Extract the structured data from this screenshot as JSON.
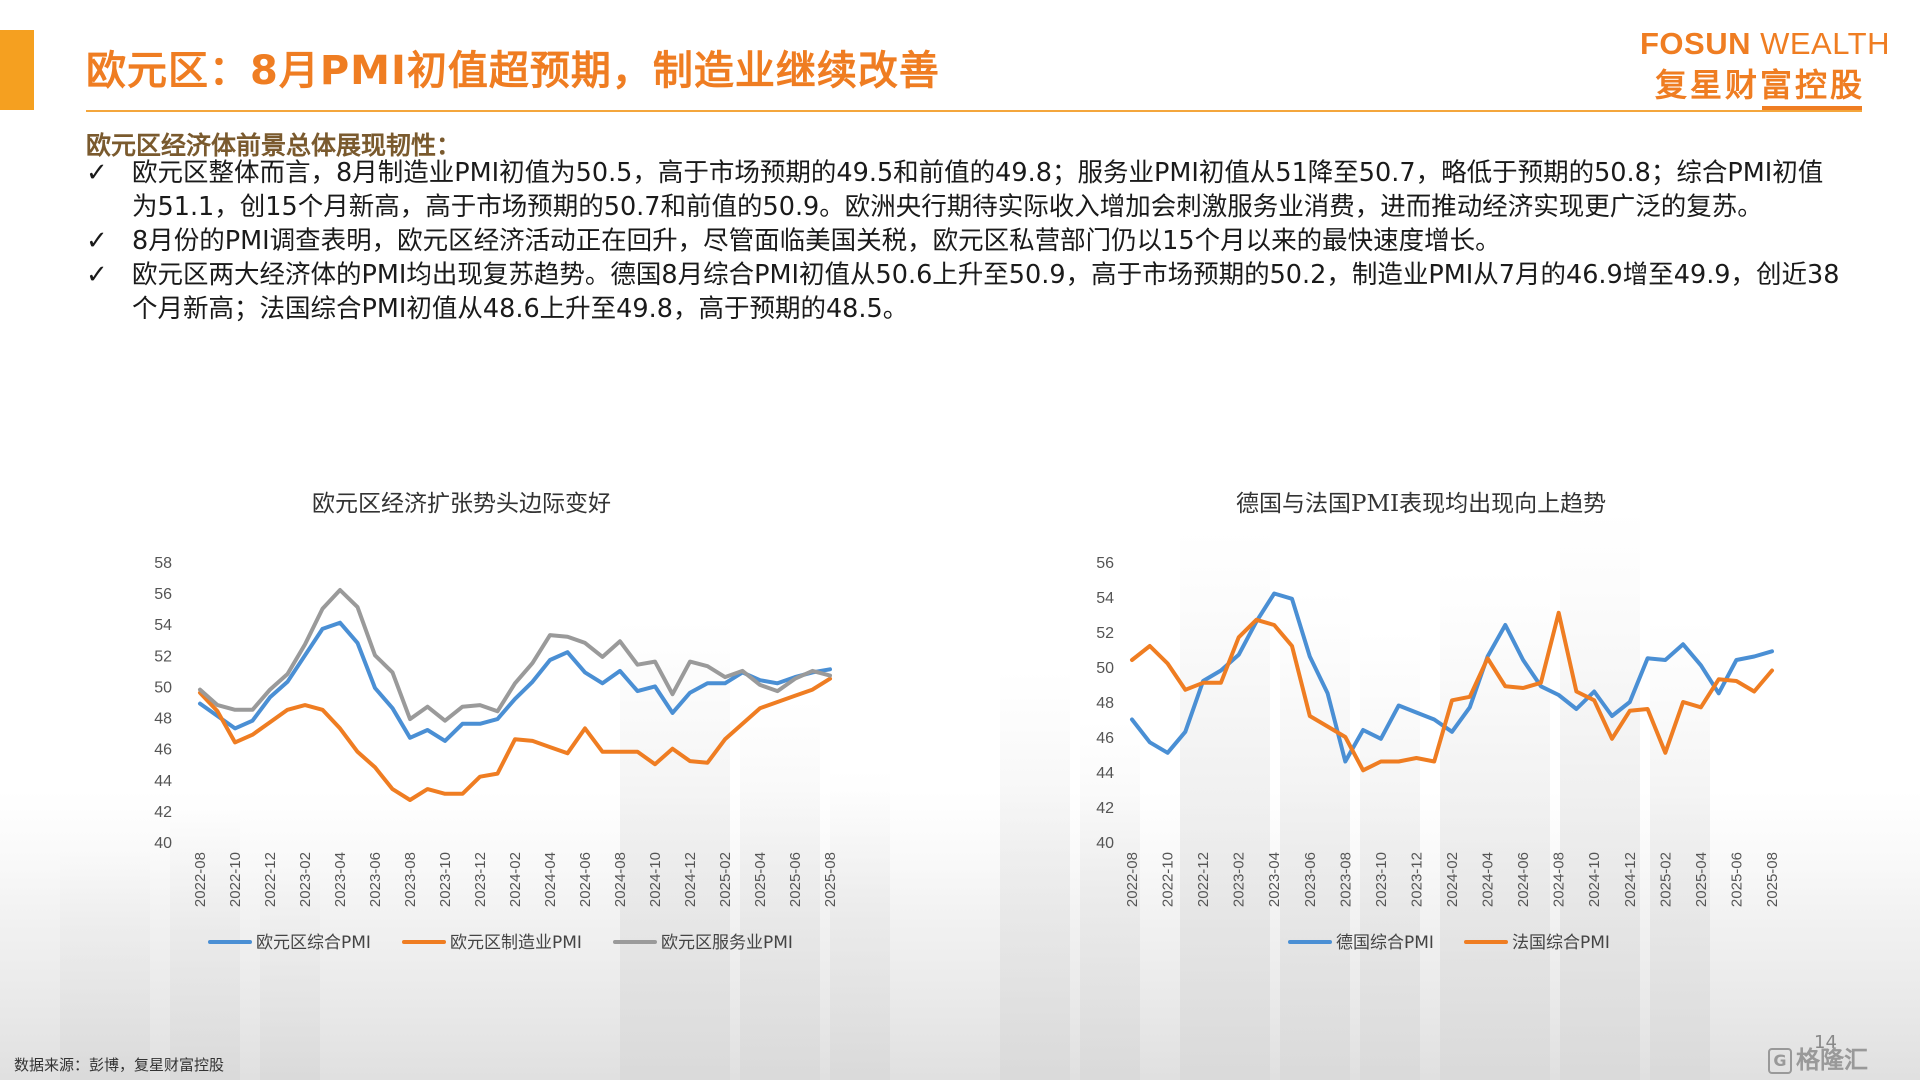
{
  "header": {
    "title": "欧元区：8月PMI初值超预期，制造业继续改善",
    "brand_en_bold": "FOSUN",
    "brand_en_light": " WEALTH",
    "brand_cn": "复星财富控股"
  },
  "intro": "欧元区经济体前景总体展现韧性：",
  "bullets": [
    "欧元区整体而言，8月制造业PMI初值为50.5，高于市场预期的49.5和前值的49.8；服务业PMI初值从51降至50.7，略低于预期的50.8；综合PMI初值为51.1，创15个月新高，高于市场预期的50.7和前值的50.9。欧洲央行期待实际收入增加会刺激服务业消费，进而推动经济实现更广泛的复苏。",
    "8月份的PMI调查表明，欧元区经济活动正在回升，尽管面临美国关税，欧元区私营部门仍以15个月以来的最快速度增长。",
    "欧元区两大经济体的PMI均出现复苏趋势。德国8月综合PMI初值从50.6上升至50.9，高于市场预期的50.2，制造业PMI从7月的46.9增至49.9，创近38个月新高；法国综合PMI初值从48.6上升至49.8，高于预期的48.5。"
  ],
  "check_glyph": "✓",
  "footer": {
    "source": "数据来源：彭博，复星财富控股",
    "page": "14",
    "watermark": "格隆汇",
    "watermark_icon": "G"
  },
  "chart_data": [
    {
      "type": "line",
      "title": "欧元区经济扩张势头边际变好",
      "ylim": [
        40,
        58
      ],
      "yticks": [
        40,
        42,
        44,
        46,
        48,
        50,
        52,
        54,
        56,
        58
      ],
      "xtick_labels": [
        "2022-08",
        "2022-10",
        "2022-12",
        "2023-02",
        "2023-04",
        "2023-06",
        "2023-08",
        "2023-10",
        "2023-12",
        "2024-02",
        "2024-04",
        "2024-06",
        "2024-08",
        "2024-10",
        "2024-12",
        "2025-02",
        "2025-04",
        "2025-06",
        "2025-08"
      ],
      "grid": false,
      "legend_position": "bottom",
      "series": [
        {
          "name": "欧元区综合PMI",
          "color": "#4a8fd4",
          "values": [
            48.9,
            48.1,
            47.3,
            47.8,
            49.3,
            50.3,
            52.0,
            53.7,
            54.1,
            52.8,
            49.9,
            48.6,
            46.7,
            47.2,
            46.5,
            47.6,
            47.6,
            47.9,
            49.2,
            50.3,
            51.7,
            52.2,
            50.9,
            50.2,
            51.0,
            49.7,
            50.0,
            48.3,
            49.6,
            50.2,
            50.2,
            50.9,
            50.4,
            50.2,
            50.6,
            50.9,
            51.1
          ]
        },
        {
          "name": "欧元区制造业PMI",
          "color": "#ef7d22",
          "values": [
            49.6,
            48.4,
            46.4,
            46.9,
            47.7,
            48.5,
            48.8,
            48.5,
            47.3,
            45.8,
            44.8,
            43.4,
            42.7,
            43.4,
            43.1,
            43.1,
            44.2,
            44.4,
            46.6,
            46.5,
            46.1,
            45.7,
            47.3,
            45.8,
            45.8,
            45.8,
            45.0,
            46.0,
            45.2,
            45.1,
            46.6,
            47.6,
            48.6,
            49.0,
            49.4,
            49.8,
            50.5
          ]
        },
        {
          "name": "欧元区服务业PMI",
          "color": "#9a9a9a",
          "values": [
            49.8,
            48.8,
            48.5,
            48.5,
            49.8,
            50.8,
            52.7,
            55.0,
            56.2,
            55.1,
            52.0,
            50.9,
            47.9,
            48.7,
            47.8,
            48.7,
            48.8,
            48.4,
            50.2,
            51.5,
            53.3,
            53.2,
            52.8,
            51.9,
            52.9,
            51.4,
            51.6,
            49.5,
            51.6,
            51.3,
            50.6,
            51.0,
            50.1,
            49.7,
            50.5,
            51.0,
            50.7
          ]
        }
      ]
    },
    {
      "type": "line",
      "title": "德国与法国PMI表现均出现向上趋势",
      "ylim": [
        40,
        56
      ],
      "yticks": [
        40,
        42,
        44,
        46,
        48,
        50,
        52,
        54,
        56
      ],
      "xtick_labels": [
        "2022-08",
        "2022-10",
        "2022-12",
        "2023-02",
        "2023-04",
        "2023-06",
        "2023-08",
        "2023-10",
        "2023-12",
        "2024-02",
        "2024-04",
        "2024-06",
        "2024-08",
        "2024-10",
        "2024-12",
        "2025-02",
        "2025-04",
        "2025-06",
        "2025-08"
      ],
      "grid": false,
      "legend_position": "bottom",
      "series": [
        {
          "name": "德国综合PMI",
          "color": "#4a8fd4",
          "values": [
            47.0,
            45.7,
            45.1,
            46.3,
            49.2,
            49.8,
            50.7,
            52.6,
            54.2,
            53.9,
            50.6,
            48.5,
            44.6,
            46.4,
            45.9,
            47.8,
            47.4,
            47.0,
            46.3,
            47.7,
            50.6,
            52.4,
            50.4,
            48.9,
            48.4,
            47.6,
            48.6,
            47.2,
            48.0,
            50.5,
            50.4,
            51.3,
            50.1,
            48.5,
            50.4,
            50.6,
            50.9
          ]
        },
        {
          "name": "法国综合PMI",
          "color": "#ef7d22",
          "values": [
            50.4,
            51.2,
            50.2,
            48.7,
            49.1,
            49.1,
            51.7,
            52.7,
            52.4,
            51.2,
            47.2,
            46.6,
            46.0,
            44.1,
            44.6,
            44.6,
            44.8,
            44.6,
            48.1,
            48.3,
            50.5,
            48.9,
            48.8,
            49.1,
            53.1,
            48.6,
            48.1,
            45.9,
            47.5,
            47.6,
            45.1,
            48.0,
            47.7,
            49.3,
            49.2,
            48.6,
            49.8
          ]
        }
      ]
    }
  ]
}
